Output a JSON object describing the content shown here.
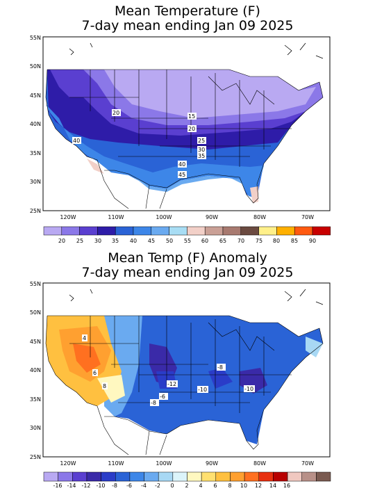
{
  "maps": [
    {
      "title_line1": "Mean Temperature (F)",
      "title_line2": "7-day mean ending Jan 09 2025",
      "lat_labels": [
        "55N",
        "50N",
        "45N",
        "40N",
        "35N",
        "30N",
        "25N"
      ],
      "lon_labels": [
        "120W",
        "110W",
        "100W",
        "90W",
        "80W",
        "70W"
      ],
      "contour_labels": [
        "20",
        "15",
        "20",
        "25",
        "30",
        "35",
        "40",
        "40",
        "45"
      ],
      "legend": {
        "colors": [
          "#b9a9f2",
          "#8b78e8",
          "#5a3fd0",
          "#2e1ca8",
          "#2a63d6",
          "#3d86e8",
          "#6aaaf0",
          "#a8ddf4",
          "#f2d0c8",
          "#caa096",
          "#a87a70",
          "#6b4a40",
          "#fff08a",
          "#ffb000",
          "#ff5a10",
          "#c80000"
        ],
        "labels": [
          "20",
          "25",
          "30",
          "35",
          "40",
          "45",
          "50",
          "55",
          "60",
          "65",
          "70",
          "75",
          "80",
          "85",
          "90"
        ]
      }
    },
    {
      "title_line1": "Mean Temp (F) Anomaly",
      "title_line2": "7-day mean ending Jan 09 2025",
      "lat_labels": [
        "55N",
        "50N",
        "45N",
        "40N",
        "35N",
        "30N",
        "25N"
      ],
      "lon_labels": [
        "120W",
        "110W",
        "100W",
        "90W",
        "80W",
        "70W"
      ],
      "contour_labels": [
        "4",
        "6",
        "8",
        "-8",
        "-12",
        "-10",
        "-8",
        "-10",
        "-6"
      ],
      "legend": {
        "colors": [
          "#b9a9f2",
          "#8b78e8",
          "#5a3fd0",
          "#3a2aa8",
          "#2a3cc8",
          "#2a63d6",
          "#3d86e8",
          "#6aaaf0",
          "#a8d8f4",
          "#dcf4fa",
          "#fff8c0",
          "#ffe070",
          "#ffc040",
          "#ffa030",
          "#ff7020",
          "#e83010",
          "#b80000",
          "#f0c8c0",
          "#b89088",
          "#7a5a50"
        ],
        "labels": [
          "-16",
          "-14",
          "-12",
          "-10",
          "-8",
          "-6",
          "-4",
          "-2",
          "0",
          "2",
          "4",
          "6",
          "8",
          "10",
          "12",
          "14",
          "16"
        ]
      }
    }
  ]
}
